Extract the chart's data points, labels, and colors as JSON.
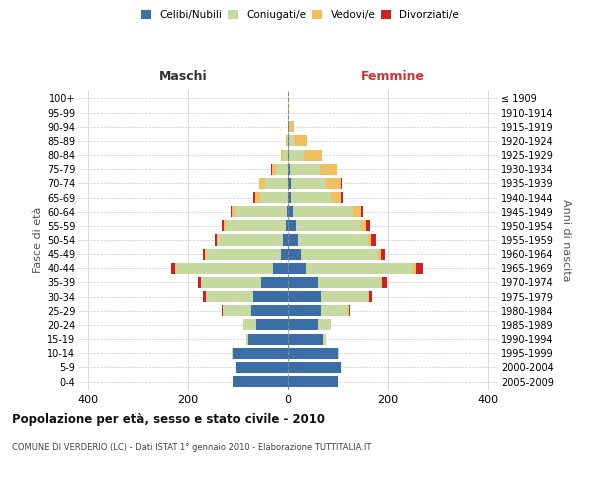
{
  "age_groups": [
    "0-4",
    "5-9",
    "10-14",
    "15-19",
    "20-24",
    "25-29",
    "30-34",
    "35-39",
    "40-44",
    "45-49",
    "50-54",
    "55-59",
    "60-64",
    "65-69",
    "70-74",
    "75-79",
    "80-84",
    "85-89",
    "90-94",
    "95-99",
    "100+"
  ],
  "birth_years": [
    "2005-2009",
    "2000-2004",
    "1995-1999",
    "1990-1994",
    "1985-1989",
    "1980-1984",
    "1975-1979",
    "1970-1974",
    "1965-1969",
    "1960-1964",
    "1955-1959",
    "1950-1954",
    "1945-1949",
    "1940-1944",
    "1935-1939",
    "1930-1934",
    "1925-1929",
    "1920-1924",
    "1915-1919",
    "1910-1914",
    "≤ 1909"
  ],
  "maschi": {
    "celibe": [
      110,
      105,
      110,
      80,
      65,
      75,
      70,
      55,
      30,
      15,
      10,
      5,
      2,
      1,
      1,
      0,
      0,
      0,
      0,
      0,
      0
    ],
    "coniugato": [
      0,
      0,
      2,
      5,
      25,
      55,
      95,
      120,
      195,
      150,
      130,
      120,
      105,
      55,
      45,
      25,
      10,
      3,
      1,
      0,
      0
    ],
    "vedovo": [
      0,
      0,
      0,
      0,
      0,
      1,
      0,
      0,
      1,
      1,
      2,
      3,
      5,
      10,
      12,
      8,
      5,
      2,
      0,
      0,
      0
    ],
    "divorziato": [
      0,
      0,
      0,
      0,
      0,
      2,
      5,
      5,
      8,
      5,
      5,
      5,
      2,
      5,
      1,
      1,
      0,
      0,
      0,
      0,
      0
    ]
  },
  "femmine": {
    "nubile": [
      100,
      105,
      100,
      70,
      60,
      65,
      65,
      60,
      35,
      25,
      20,
      15,
      10,
      5,
      5,
      3,
      2,
      2,
      1,
      0,
      0
    ],
    "coniugata": [
      0,
      0,
      2,
      5,
      25,
      55,
      95,
      125,
      215,
      155,
      140,
      130,
      120,
      80,
      70,
      60,
      30,
      10,
      2,
      0,
      0
    ],
    "vedova": [
      0,
      0,
      0,
      0,
      0,
      1,
      2,
      3,
      5,
      5,
      5,
      10,
      15,
      20,
      30,
      35,
      35,
      25,
      8,
      1,
      0
    ],
    "divorziata": [
      0,
      0,
      0,
      0,
      1,
      3,
      5,
      10,
      15,
      8,
      10,
      8,
      5,
      5,
      2,
      0,
      0,
      0,
      0,
      0,
      0
    ]
  },
  "colors": {
    "celibe": "#3a6ea5",
    "coniugato": "#c5d9a0",
    "vedovo": "#f0c060",
    "divorziato": "#cc2222"
  },
  "xlim": 420,
  "title": "Popolazione per età, sesso e stato civile - 2010",
  "subtitle": "COMUNE DI VERDERIO (LC) - Dati ISTAT 1° gennaio 2010 - Elaborazione TUTTITALIA.IT",
  "ylabel_left": "Fasce di età",
  "ylabel_right": "Anni di nascita",
  "xlabel_left": "Maschi",
  "xlabel_right": "Femmine",
  "legend_labels": [
    "Celibi/Nubili",
    "Coniugati/e",
    "Vedovi/e",
    "Divorziati/e"
  ],
  "background_color": "#ffffff",
  "grid_color": "#cccccc"
}
